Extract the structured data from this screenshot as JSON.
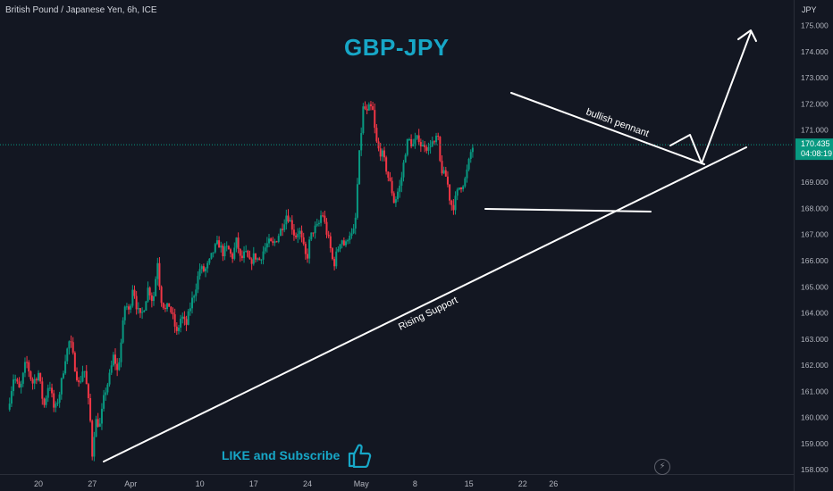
{
  "header": {
    "symbol_description": "British Pound / Japanese Yen, 6h, ICE"
  },
  "annotations": {
    "title": "GBP-JPY",
    "pennant_label": "bullish pennant",
    "support_label": "Rising Support",
    "cta": "LIKE and Subscribe"
  },
  "price_badge": {
    "price": "170.435",
    "countdown": "04:08:19",
    "color": "#089981"
  },
  "colors": {
    "up": "#089981",
    "down": "#f23645",
    "accent": "#17a7c7",
    "background": "#131722"
  },
  "icons": {
    "cta_icon": "thumbs-up-icon",
    "replay_icon": "lightning-icon"
  },
  "chart_data": {
    "type": "candlestick",
    "currency_label": "JPY",
    "y_ticks": [
      158.0,
      159.0,
      160.0,
      161.0,
      162.0,
      163.0,
      164.0,
      165.0,
      166.0,
      167.0,
      168.0,
      169.0,
      170.0,
      171.0,
      172.0,
      173.0,
      174.0,
      175.0
    ],
    "y_tick_labels": [
      "158.000",
      "159.000",
      "160.000",
      "161.000",
      "162.000",
      "163.000",
      "164.000",
      "165.000",
      "166.000",
      "167.000",
      "168.000",
      "169.000",
      "170.000",
      "171.000",
      "172.000",
      "173.000",
      "174.000",
      "175.000"
    ],
    "ylim": [
      157.7,
      175.7
    ],
    "x_ticks": [
      {
        "label": "20",
        "day": 0
      },
      {
        "label": "27",
        "day": 7
      },
      {
        "label": "Apr",
        "day": 12
      },
      {
        "label": "10",
        "day": 21
      },
      {
        "label": "17",
        "day": 28
      },
      {
        "label": "24",
        "day": 35
      },
      {
        "label": "May",
        "day": 42
      },
      {
        "label": "8",
        "day": 49
      },
      {
        "label": "15",
        "day": 56
      },
      {
        "label": "22",
        "day": 63
      },
      {
        "label": "26",
        "day": 67
      }
    ],
    "last_price": 170.435,
    "close_path": [
      [
        -4,
        160.3
      ],
      [
        -3.2,
        161.6
      ],
      [
        -2.4,
        161.0
      ],
      [
        -1.6,
        162.2
      ],
      [
        -0.8,
        161.3
      ],
      [
        0,
        161.7
      ],
      [
        0.7,
        160.4
      ],
      [
        1.4,
        161.4
      ],
      [
        2.1,
        160.2
      ],
      [
        2.8,
        161.0
      ],
      [
        3.5,
        162.3
      ],
      [
        4.1,
        163.0
      ],
      [
        4.7,
        162.0
      ],
      [
        5.3,
        161.2
      ],
      [
        5.9,
        162.0
      ],
      [
        6.4,
        160.9
      ],
      [
        6.8,
        159.7
      ],
      [
        7.0,
        158.6
      ],
      [
        7.4,
        159.9
      ],
      [
        8.0,
        159.7
      ],
      [
        8.6,
        160.9
      ],
      [
        9.2,
        161.5
      ],
      [
        9.8,
        162.4
      ],
      [
        10.3,
        161.7
      ],
      [
        10.8,
        163.0
      ],
      [
        11.3,
        164.4
      ],
      [
        11.8,
        164.0
      ],
      [
        12.3,
        165.1
      ],
      [
        12.8,
        164.2
      ],
      [
        13.3,
        163.8
      ],
      [
        13.8,
        164.3
      ],
      [
        14.3,
        165.0
      ],
      [
        14.9,
        164.4
      ],
      [
        15.5,
        166.0
      ],
      [
        15.9,
        164.6
      ],
      [
        16.5,
        164.1
      ],
      [
        17.0,
        164.3
      ],
      [
        17.5,
        163.8
      ],
      [
        18.0,
        163.2
      ],
      [
        18.6,
        163.9
      ],
      [
        19.2,
        163.5
      ],
      [
        19.8,
        164.3
      ],
      [
        20.4,
        164.9
      ],
      [
        21.0,
        165.7
      ],
      [
        21.6,
        165.6
      ],
      [
        22.2,
        165.9
      ],
      [
        22.8,
        166.4
      ],
      [
        23.4,
        166.7
      ],
      [
        24.0,
        166.3
      ],
      [
        24.6,
        166.5
      ],
      [
        25.2,
        166.1
      ],
      [
        25.8,
        166.8
      ],
      [
        26.3,
        166.0
      ],
      [
        26.9,
        166.3
      ],
      [
        27.5,
        165.9
      ],
      [
        28.1,
        166.2
      ],
      [
        28.7,
        166.0
      ],
      [
        29.3,
        166.4
      ],
      [
        29.9,
        166.7
      ],
      [
        30.5,
        166.6
      ],
      [
        31.1,
        166.9
      ],
      [
        31.7,
        167.3
      ],
      [
        32.3,
        167.8
      ],
      [
        32.9,
        167.4
      ],
      [
        33.4,
        166.9
      ],
      [
        33.9,
        167.2
      ],
      [
        34.4,
        166.6
      ],
      [
        34.9,
        166.0
      ],
      [
        35.3,
        166.8
      ],
      [
        35.8,
        167.2
      ],
      [
        36.4,
        167.3
      ],
      [
        36.9,
        167.9
      ],
      [
        37.4,
        167.2
      ],
      [
        37.9,
        166.6
      ],
      [
        38.4,
        165.8
      ],
      [
        38.9,
        166.4
      ],
      [
        39.4,
        166.9
      ],
      [
        39.9,
        166.5
      ],
      [
        40.4,
        167.1
      ],
      [
        40.9,
        166.9
      ],
      [
        41.3,
        167.7
      ],
      [
        41.6,
        169.5
      ],
      [
        41.9,
        170.6
      ],
      [
        42.3,
        172.0
      ],
      [
        42.7,
        171.6
      ],
      [
        43.1,
        171.9
      ],
      [
        43.5,
        171.7
      ],
      [
        43.9,
        170.6
      ],
      [
        44.3,
        170.2
      ],
      [
        44.7,
        170.1
      ],
      [
        45.1,
        169.7
      ],
      [
        45.5,
        169.2
      ],
      [
        45.9,
        168.8
      ],
      [
        46.3,
        168.2
      ],
      [
        46.7,
        168.6
      ],
      [
        47.1,
        168.9
      ],
      [
        47.5,
        169.7
      ],
      [
        47.9,
        170.5
      ],
      [
        48.3,
        170.6
      ],
      [
        48.7,
        170.4
      ],
      [
        49.1,
        170.6
      ],
      [
        49.5,
        170.7
      ],
      [
        49.9,
        170.3
      ],
      [
        50.3,
        170.5
      ],
      [
        50.7,
        170.2
      ],
      [
        51.1,
        170.6
      ],
      [
        51.5,
        170.4
      ],
      [
        51.9,
        170.9
      ],
      [
        52.3,
        169.6
      ],
      [
        52.7,
        169.3
      ],
      [
        53.1,
        169.2
      ],
      [
        53.5,
        168.4
      ],
      [
        53.9,
        168.0
      ],
      [
        54.3,
        168.4
      ],
      [
        54.7,
        168.8
      ],
      [
        55.1,
        168.9
      ],
      [
        55.5,
        169.1
      ],
      [
        55.9,
        169.6
      ],
      [
        56.2,
        170.1
      ],
      [
        56.6,
        170.435
      ]
    ]
  }
}
